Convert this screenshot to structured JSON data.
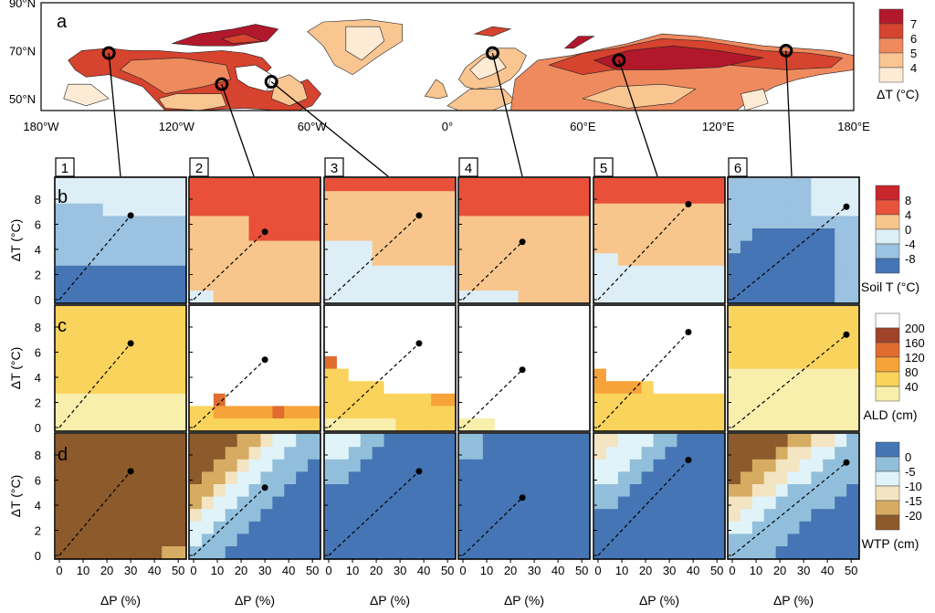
{
  "panel_letters": {
    "a": "a",
    "b": "b",
    "c": "c",
    "d": "d"
  },
  "site_numbers": [
    "1",
    "2",
    "3",
    "4",
    "5",
    "6"
  ],
  "map": {
    "lat_labels": [
      "90°N",
      "70°N",
      "50°N"
    ],
    "lon_labels": [
      "180°W",
      "120°W",
      "60°W",
      "0°",
      "60°E",
      "120°E",
      "180°E"
    ],
    "legend_ticks": [
      "7",
      "6",
      "5",
      "4"
    ],
    "legend_colors": [
      "#b2182b",
      "#d6432e",
      "#ef8a5e",
      "#f9c591",
      "#fdebd6"
    ],
    "legend_title": "ΔT (°C)",
    "sites": [
      {
        "id": "1",
        "lon": -150,
        "lat": 69
      },
      {
        "id": "2",
        "lon": -100,
        "lat": 56
      },
      {
        "id": "3",
        "lon": -78,
        "lat": 57
      },
      {
        "id": "4",
        "lon": 20,
        "lat": 69
      },
      {
        "id": "5",
        "lon": 76,
        "lat": 66
      },
      {
        "id": "6",
        "lon": 150,
        "lat": 70
      }
    ]
  },
  "axes": {
    "ylabel": "ΔT (°C)",
    "xlabel": "ΔP (%)",
    "y_ticks": [
      "0",
      "2",
      "4",
      "6",
      "8"
    ],
    "x_ticks": [
      "0",
      "10",
      "20",
      "30",
      "40",
      "50"
    ]
  },
  "legends": {
    "soilT": {
      "ticks": [
        "8",
        "4",
        "0",
        "-4",
        "-8"
      ],
      "colors": [
        "#c9252c",
        "#e8533b",
        "#f8c68c",
        "#ddeef6",
        "#9bc2e0",
        "#4575b4"
      ],
      "title": "Soil T (°C)"
    },
    "ald": {
      "ticks": [
        "200",
        "160",
        "120",
        "80",
        "40"
      ],
      "colors": [
        "#ffffff",
        "#a0432a",
        "#e06c2e",
        "#f6a33a",
        "#f9d35c",
        "#f9efac"
      ],
      "title": "ALD (cm)"
    },
    "wtp": {
      "ticks": [
        "0",
        "-5",
        "-10",
        "-15",
        "-20"
      ],
      "colors": [
        "#4575b4",
        "#91bfdb",
        "#e0f3f8",
        "#f3e4c2",
        "#d6ac62",
        "#8c5a2b"
      ],
      "title": "WTP (cm)"
    }
  },
  "chart_data": {
    "type": "heatmap",
    "x": [
      0,
      5,
      10,
      15,
      20,
      25,
      30,
      35,
      40,
      45,
      50
    ],
    "y": [
      0,
      1,
      2,
      3,
      4,
      5,
      6,
      7,
      8,
      9
    ],
    "markers": [
      {
        "site": "1",
        "dP": 30,
        "dT": 6.7
      },
      {
        "site": "2",
        "dP": 30,
        "dT": 5.4
      },
      {
        "site": "3",
        "dP": 38,
        "dT": 6.7
      },
      {
        "site": "4",
        "dP": 25,
        "dT": 4.6
      },
      {
        "site": "5",
        "dP": 38,
        "dT": 7.6
      },
      {
        "site": "6",
        "dP": 48,
        "dT": 7.4
      }
    ],
    "soilT": [
      [
        "-8:0-2",
        "-4:3-6",
        "-1:7-9"
      ],
      [
        "-1:0",
        "0:1-5",
        "4:6-7",
        "8:8-9"
      ],
      [
        "-1:0-4",
        "0:5-8",
        "8:9"
      ],
      [
        "-1:0",
        "0:1-6",
        "8:7-9"
      ],
      [
        "-1:0-3",
        "0:4-7",
        "8:8-9"
      ],
      [
        "-8:0-5",
        "-4:6-9"
      ]
    ]
  }
}
